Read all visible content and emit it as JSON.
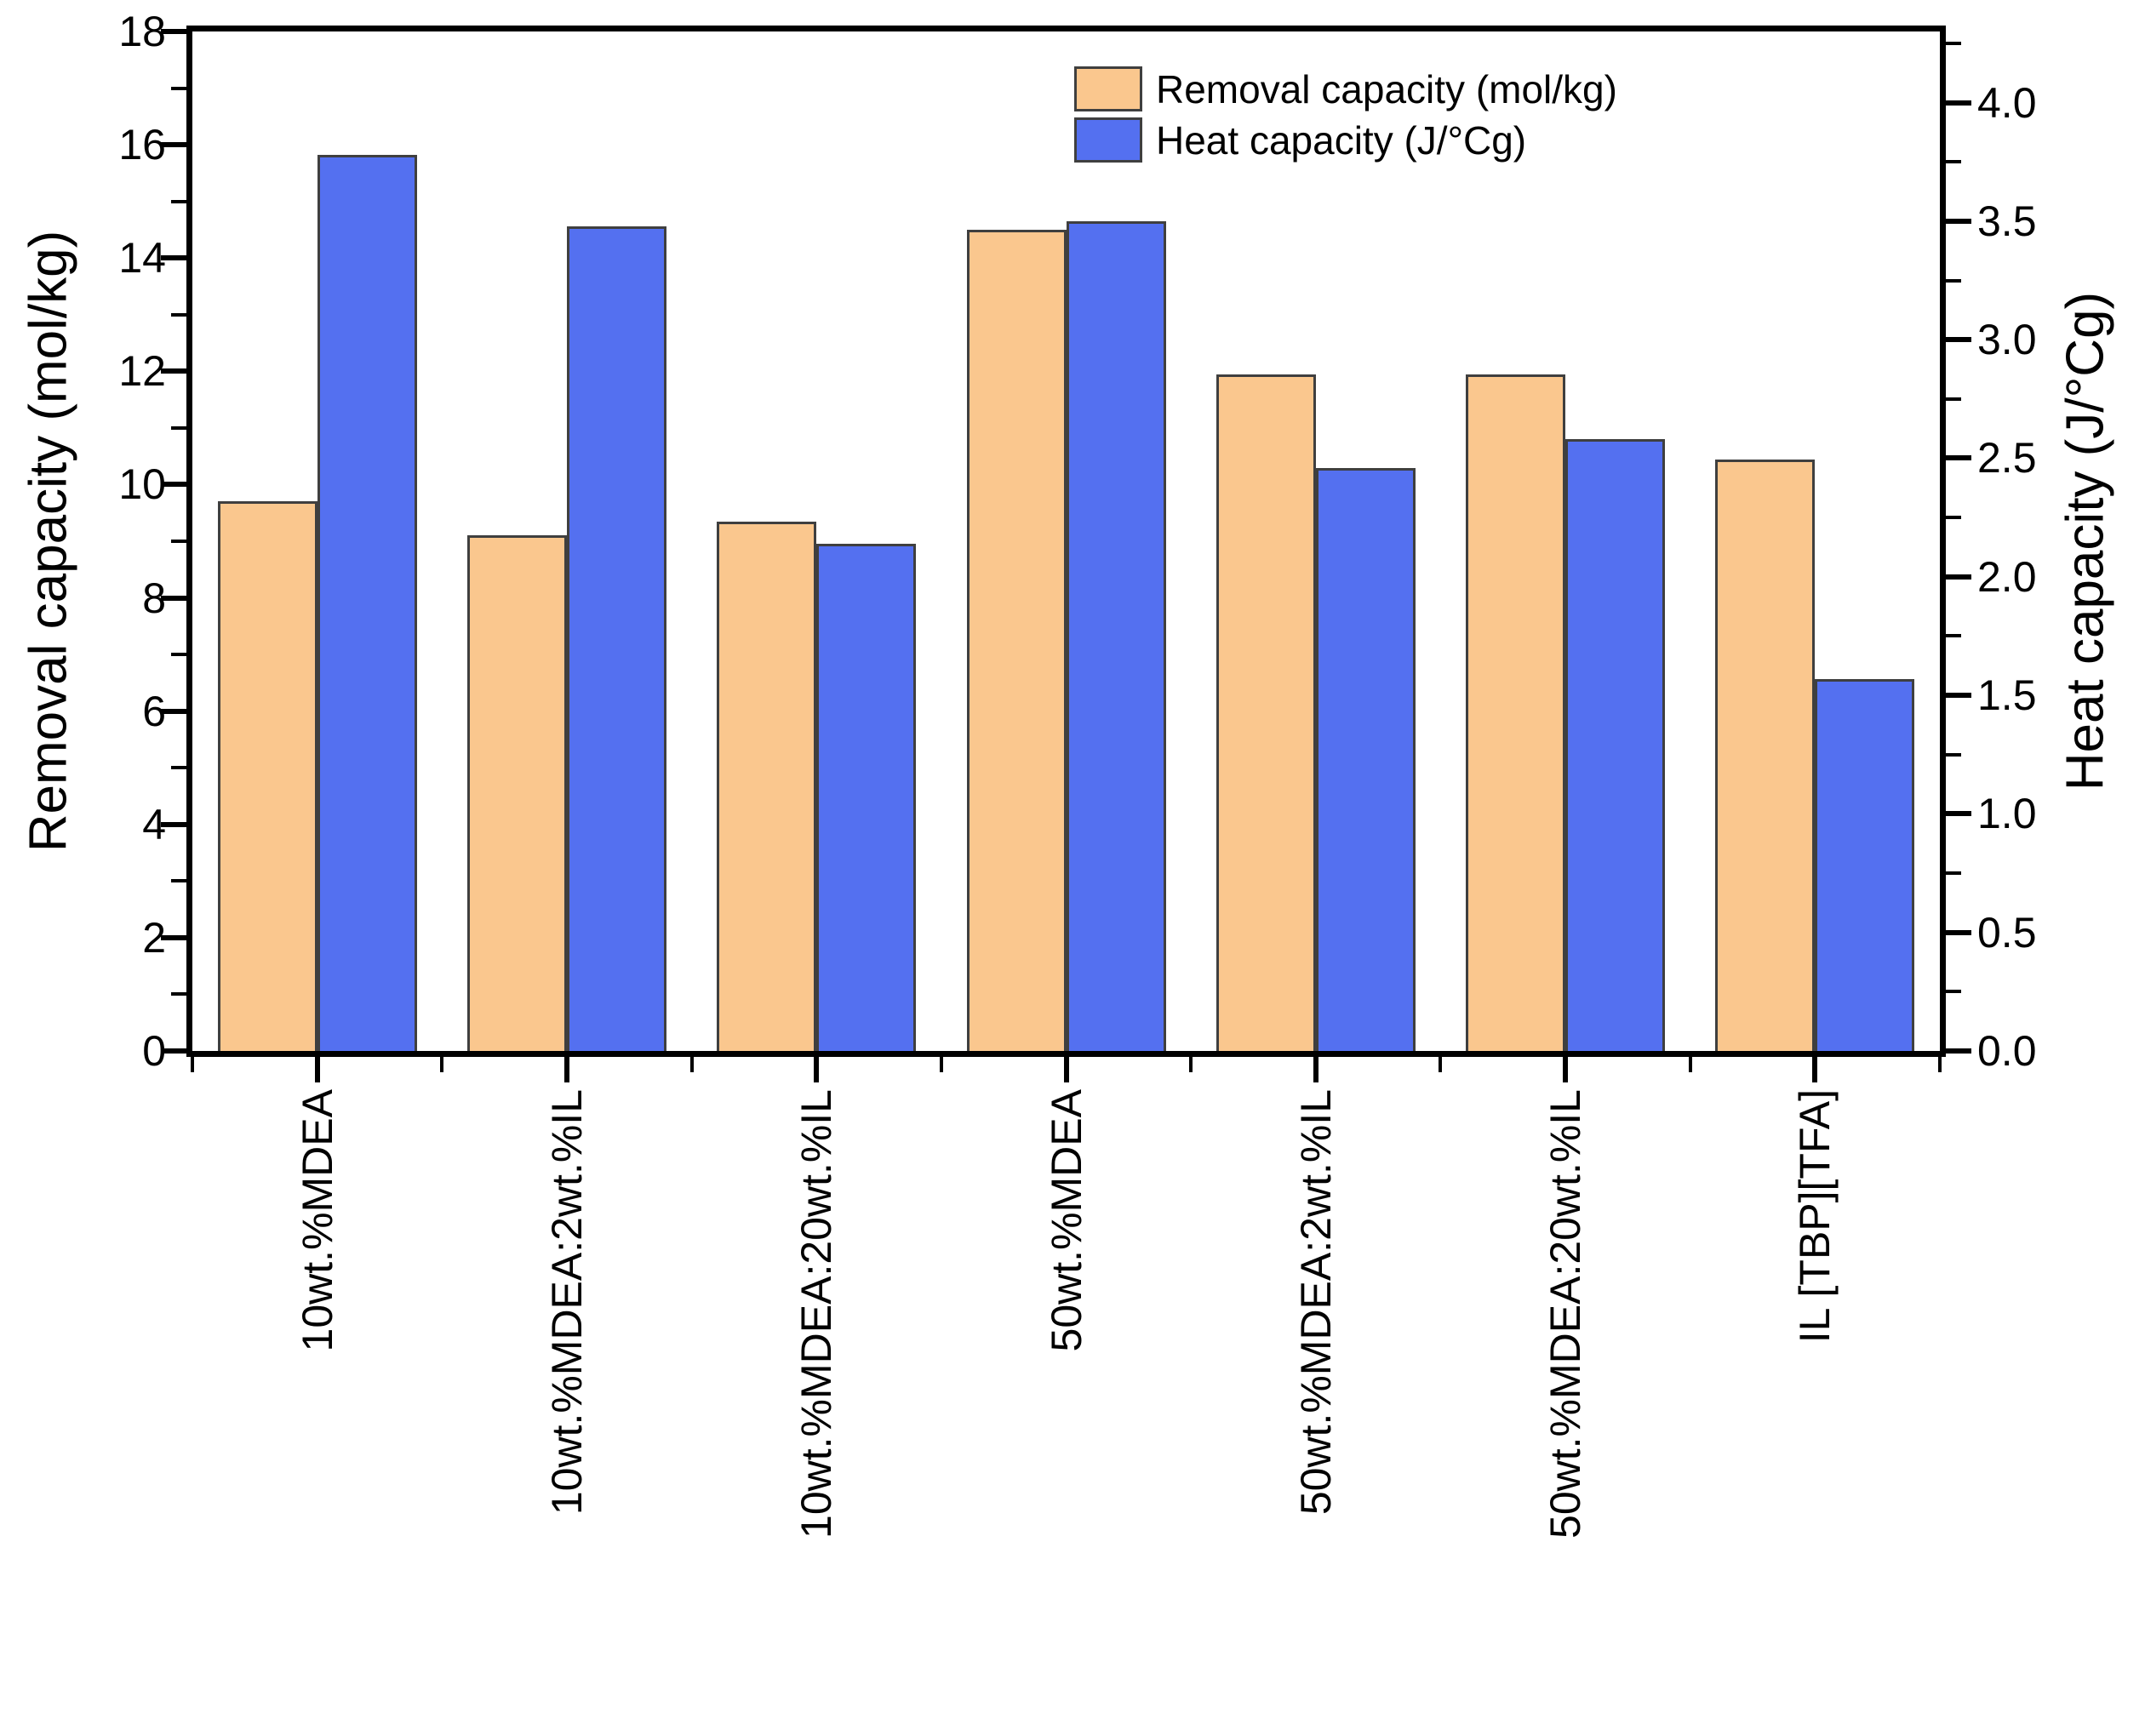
{
  "chart_data": {
    "type": "bar",
    "title": "",
    "categories": [
      "10wt.%MDEA",
      "10wt.%MDEA:2wt.%IL",
      "10wt.%MDEA:20wt.%IL",
      "50wt.%MDEA",
      "50wt.%MDEA:2wt.%IL",
      "50wt.%MDEA:20wt.%IL",
      "IL [TBP][TFA]"
    ],
    "series": [
      {
        "name": "Removal capacity (mol/kg)",
        "axis": "left",
        "color": "#FAC78E",
        "border_color": "#3F3F3F",
        "values": [
          9.7,
          9.1,
          9.35,
          14.5,
          11.95,
          11.95,
          10.45
        ]
      },
      {
        "name": "Heat capacity (J/°Cg)",
        "axis": "right",
        "color": "#5470F0",
        "border_color": "#3F3F3F",
        "values": [
          3.78,
          3.48,
          2.14,
          3.5,
          2.46,
          2.58,
          1.57
        ]
      }
    ],
    "left_axis": {
      "label": "Removal capacity (mol/kg)",
      "min": 0,
      "max": 18,
      "major_step": 2,
      "minor_step": 1,
      "tick_labels": [
        "0",
        "2",
        "4",
        "6",
        "8",
        "10",
        "12",
        "14",
        "16",
        "18"
      ]
    },
    "right_axis": {
      "label": "Heat capacity (J/°Cg)",
      "min": 0,
      "max": 4.3,
      "major_step": 0.5,
      "minor_step": 0.25,
      "tick_labels": [
        "0.0",
        "0.5",
        "1.0",
        "1.5",
        "2.0",
        "2.5",
        "3.0",
        "3.5",
        "4.0"
      ]
    },
    "x_axis": {
      "label": "",
      "tick_label_rotation_deg": -90
    },
    "legend": {
      "position": "inside-top-right-of-center",
      "entries": [
        "Removal capacity (mol/kg)",
        "Heat capacity (J/°Cg)"
      ]
    },
    "grid": false,
    "frame_color": "#000000",
    "background_color": "#FFFFFF"
  }
}
